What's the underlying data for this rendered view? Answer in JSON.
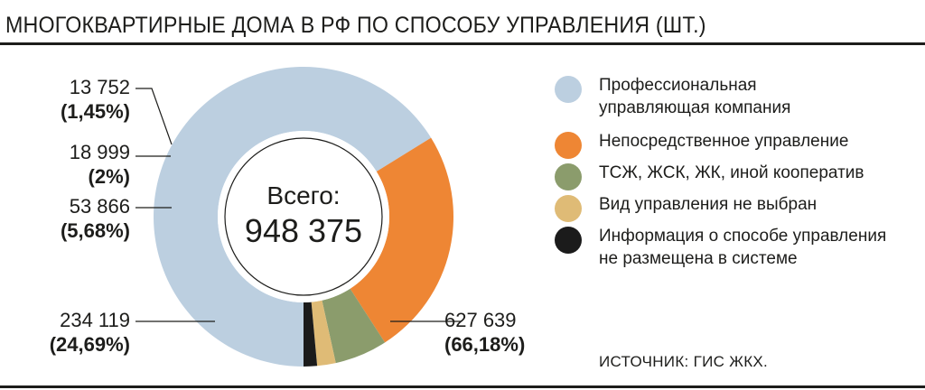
{
  "title": "МНОГОКВАРТИРНЫЕ ДОМА В РФ ПО СПОСОБУ УПРАВЛЕНИЯ (ШТ.)",
  "source": "ИСТОЧНИК: ГИС ЖКХ.",
  "chart_data": {
    "type": "pie",
    "title": "МНОГОКВАРТИРНЫЕ ДОМА В РФ ПО СПОСОБУ УПРАВЛЕНИЯ (ШТ.)",
    "total_caption": "Всего:",
    "total_value": "948 375",
    "legend_position": "right",
    "slices": [
      {
        "name": "Профессиональная управляющая компания",
        "value": 627639,
        "value_label": "627 639",
        "percent_label": "(66,18%)",
        "color": "#bccfe0"
      },
      {
        "name": "Непосредственное управление",
        "value": 234119,
        "value_label": "234 119",
        "percent_label": "(24,69%)",
        "color": "#ee8634"
      },
      {
        "name": "ТСЖ, ЖСК, ЖК, иной кооператив",
        "value": 53866,
        "value_label": "53 866",
        "percent_label": "(5,68%)",
        "color": "#8b9c6c"
      },
      {
        "name": "Вид управления не выбран",
        "value": 18999,
        "value_label": "18 999",
        "percent_label": "(2%)",
        "color": "#dfbb76"
      },
      {
        "name": "Информация о способе управления не размещена в системе",
        "value": 13752,
        "value_label": "13 752",
        "percent_label": "(1,45%)",
        "color": "#1b1b1b"
      }
    ]
  },
  "legend": [
    {
      "lines": [
        "Профессиональная",
        "управляющая компания"
      ],
      "color": "#bccfe0"
    },
    {
      "lines": [
        "Непосредственное управление"
      ],
      "color": "#ee8634"
    },
    {
      "lines": [
        "ТСЖ, ЖСК, ЖК, иной кооператив"
      ],
      "color": "#8b9c6c"
    },
    {
      "lines": [
        "Вид управления не выбран"
      ],
      "color": "#dfbb76"
    },
    {
      "lines": [
        "Информация о способе управления",
        "не размещена в системе"
      ],
      "color": "#1b1b1b"
    }
  ]
}
